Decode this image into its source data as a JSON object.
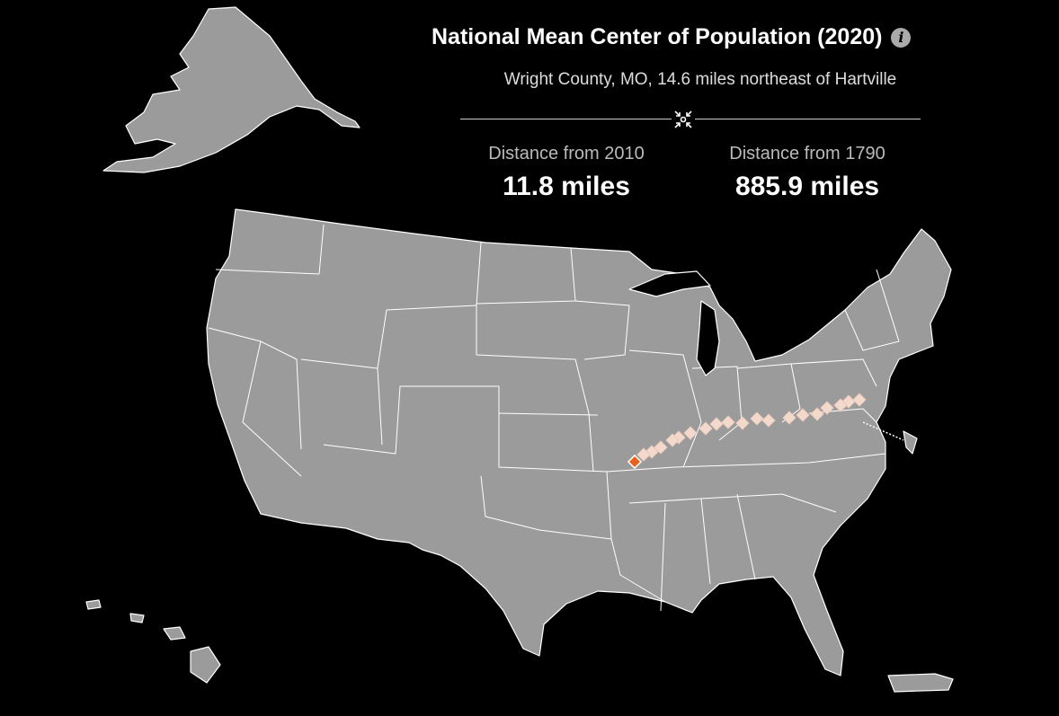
{
  "header": {
    "title": "National Mean Center of Population (2020)",
    "info_icon": "info-icon",
    "location": "Wright County, MO, 14.6 miles northeast of Hartville",
    "center_icon": "center-arrows-icon"
  },
  "stats": [
    {
      "label": "Distance from 2010",
      "value": "11.8 miles"
    },
    {
      "label": "Distance from 1790",
      "value": "885.9 miles"
    }
  ],
  "colors": {
    "background": "#000000",
    "land": "#9b9b9b",
    "borders": "#ffffff",
    "past_center": "#f3d9cc",
    "current_center": "#e8601c"
  }
}
